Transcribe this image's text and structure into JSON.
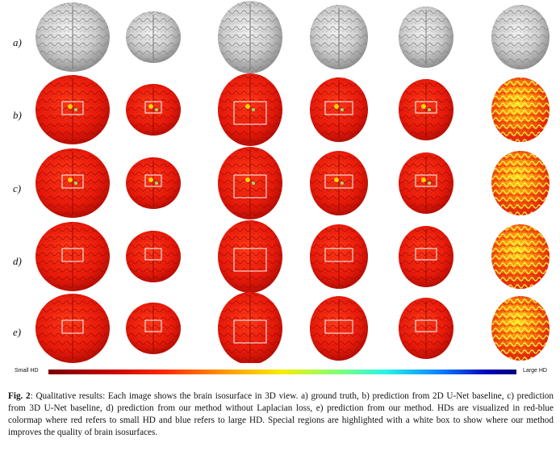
{
  "rows": [
    {
      "label": "a)"
    },
    {
      "label": "b)"
    },
    {
      "label": "c)"
    },
    {
      "label": "d)"
    },
    {
      "label": "e)"
    }
  ],
  "colorbar": {
    "left_label": "Small HD",
    "right_label": "Large HD"
  },
  "caption": {
    "fig_label": "Fig. 2",
    "text": ": Qualitative results: Each image shows the brain isosurface in 3D view. a) ground truth, b) prediction from 2D U-Net baseline, c) prediction from 3D U-Net baseline, d) prediction from our method without Laplacian loss, e) prediction from our method. HDs are visualized in red-blue colormap where red refers to small HD and blue refers to large HD. Special regions are highlighted with a white box to show where our method improves the quality of brain isosurfaces."
  }
}
